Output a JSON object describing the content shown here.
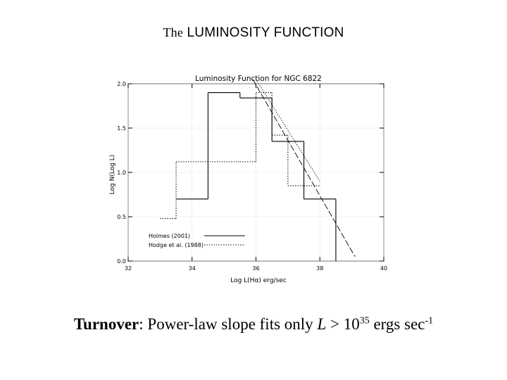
{
  "slide": {
    "title_prefix": "The",
    "title_main": "LUMINOSITY FUNCTION",
    "caption_bold": "Turnover",
    "caption_text": ": Power-law slope fits only ",
    "caption_var": "L",
    "caption_gt": " > 10",
    "caption_exp": "35",
    "caption_units": " ergs sec",
    "caption_units_exp": "-1"
  },
  "chart_data": {
    "type": "histogram",
    "title": "Luminosity Function for NGC 6822",
    "xlabel": "Log L(Hα) erg/sec",
    "ylabel": "Log N(Log L)",
    "xlim": [
      32,
      40
    ],
    "ylim": [
      0.0,
      2.0
    ],
    "x_ticks": [
      32,
      34,
      36,
      38,
      40
    ],
    "x_tick_labels": [
      "32",
      "34",
      "36",
      "38",
      "40"
    ],
    "y_ticks": [
      0.0,
      0.5,
      1.0,
      1.5,
      2.0
    ],
    "y_tick_labels": [
      "0.0",
      "0.5",
      "1.0",
      "1.5",
      "2.0"
    ],
    "legend_position": "bottom-left",
    "series": [
      {
        "name": "Holmes (2001)",
        "style": "solid",
        "bin_edges": [
          33.5,
          34.5,
          35.5,
          36.5,
          37.5,
          38.5
        ],
        "values": [
          0.7,
          1.9,
          1.84,
          1.35,
          0.7
        ]
      },
      {
        "name": "Hodge et al. (1988)",
        "style": "dotted",
        "bin_edges": [
          33.0,
          33.5,
          35.5,
          36.0,
          36.5,
          37.0,
          37.5,
          38.0
        ],
        "values": [
          0.48,
          1.12,
          1.12,
          1.9,
          1.42,
          0.85,
          0.85
        ]
      }
    ],
    "fit_lines": [
      {
        "style": "long-dash",
        "x": [
          35.9,
          39.1
        ],
        "y": [
          2.05,
          0.05
        ]
      },
      {
        "style": "dotted",
        "x": [
          36.0,
          38.0
        ],
        "y": [
          2.05,
          0.9
        ]
      }
    ]
  }
}
